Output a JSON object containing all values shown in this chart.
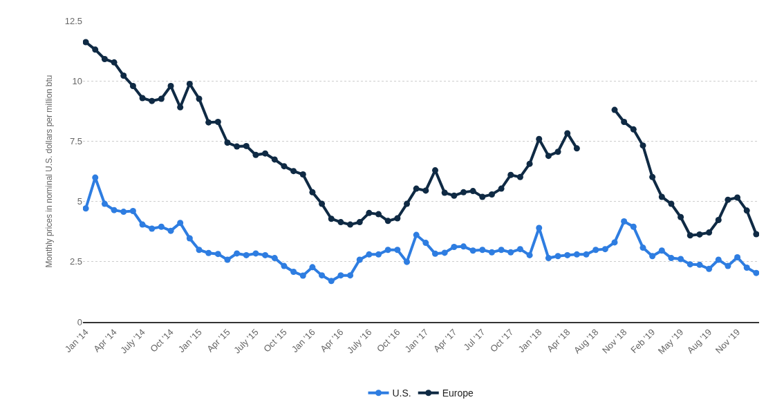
{
  "chart_data": {
    "type": "line",
    "ylabel": "Monthly prices in nominal U.S. dollars per million btu",
    "categories": [
      "Jan '14",
      null,
      null,
      "Apr '14",
      null,
      null,
      "July '14",
      null,
      null,
      "Oct '14",
      null,
      null,
      "Jan '15",
      null,
      null,
      "Apr '15",
      null,
      null,
      "July '15",
      null,
      null,
      "Oct '15",
      null,
      null,
      "Jan '16",
      null,
      null,
      "Apr '16",
      null,
      null,
      "July '16",
      null,
      null,
      "Oct '16",
      null,
      null,
      "Jan '17",
      null,
      null,
      "Apr '17",
      null,
      null,
      "Jul '17",
      null,
      null,
      "Oct '17",
      null,
      null,
      "Jan '18",
      null,
      null,
      "Apr '18",
      null,
      null,
      "Aug '18",
      null,
      null,
      "Nov '18",
      null,
      null,
      "Feb '19",
      null,
      null,
      "May '19",
      null,
      null,
      "Aug '19",
      null,
      null,
      "Nov '19",
      null,
      null
    ],
    "series": [
      {
        "name": "U.S.",
        "color": "#2e7de1",
        "values": [
          4.71,
          5.99,
          4.9,
          4.64,
          4.57,
          4.6,
          4.04,
          3.87,
          3.95,
          3.78,
          4.11,
          3.47,
          2.99,
          2.86,
          2.82,
          2.58,
          2.84,
          2.77,
          2.84,
          2.77,
          2.65,
          2.32,
          2.08,
          1.92,
          2.27,
          1.93,
          1.7,
          1.93,
          1.93,
          2.58,
          2.8,
          2.8,
          2.99,
          2.99,
          2.49,
          3.61,
          3.28,
          2.83,
          2.87,
          3.11,
          3.13,
          2.96,
          2.99,
          2.89,
          2.99,
          2.89,
          3.02,
          2.77,
          3.9,
          2.65,
          2.73,
          2.77,
          2.8,
          2.8,
          2.99,
          3.02,
          3.3,
          4.17,
          3.95,
          3.08,
          2.73,
          2.96,
          2.65,
          2.61,
          2.39,
          2.37,
          2.2,
          2.58,
          2.32,
          2.68,
          2.25,
          2.03
        ]
      },
      {
        "name": "Europe",
        "color": "#0f2a44",
        "values": [
          11.61,
          11.3,
          10.91,
          10.77,
          10.22,
          9.79,
          9.29,
          9.17,
          9.26,
          9.79,
          8.91,
          9.88,
          9.26,
          8.28,
          8.3,
          7.44,
          7.28,
          7.3,
          6.93,
          6.99,
          6.74,
          6.46,
          6.26,
          6.12,
          5.38,
          4.9,
          4.28,
          4.14,
          4.04,
          4.14,
          4.52,
          4.47,
          4.19,
          4.3,
          4.9,
          5.53,
          5.45,
          6.29,
          5.36,
          5.24,
          5.38,
          5.43,
          5.19,
          5.29,
          5.53,
          6.1,
          6.01,
          6.56,
          7.59,
          6.89,
          7.06,
          7.83,
          7.2,
          null,
          null,
          null,
          8.8,
          8.3,
          7.99,
          7.32,
          6.01,
          5.19,
          4.9,
          4.35,
          3.59,
          3.63,
          3.71,
          4.23,
          5.07,
          5.16,
          4.62,
          3.64
        ]
      }
    ],
    "ylim": [
      0,
      12.5
    ],
    "yticks": [
      0,
      2.5,
      5,
      7.5,
      10,
      12.5
    ],
    "grid": "y",
    "legend": "bottom",
    "marker": "circle",
    "line_style": "solid"
  }
}
